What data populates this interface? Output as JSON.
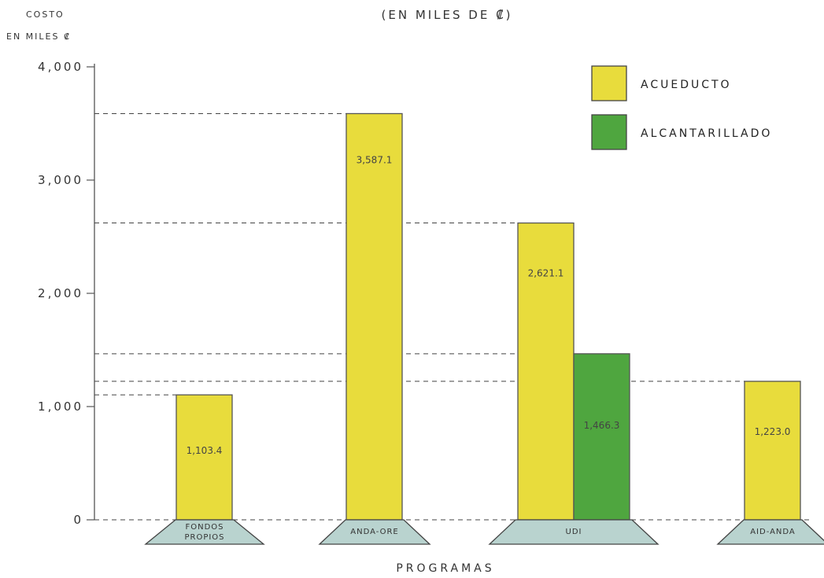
{
  "chart_data": {
    "type": "bar",
    "title": "(EN MILES DE ₡)",
    "ylabel_line1": "COSTO",
    "ylabel_line2": "EN MILES ₡",
    "xlabel": "PROGRAMAS",
    "ylim": [
      0,
      4000
    ],
    "yticks": [
      {
        "value": 0,
        "label": "0"
      },
      {
        "value": 1000,
        "label": "1,000"
      },
      {
        "value": 2000,
        "label": "2,000"
      },
      {
        "value": 3000,
        "label": "3,000"
      },
      {
        "value": 4000,
        "label": "4,000"
      }
    ],
    "categories": [
      "FONDOS PROPIOS",
      "ANDA-ORE",
      "UDI",
      "AID-ANDA"
    ],
    "series": [
      {
        "name": "ACUEDUCTO",
        "color": "#e8dc3c",
        "values": [
          1103.4,
          3587.1,
          2621.1,
          1223.0
        ],
        "labels": [
          "1,103.4",
          "3,587.1",
          "2,621.1",
          "1,223.0"
        ]
      },
      {
        "name": "ALCANTARILLADO",
        "color": "#4fa63f",
        "values": [
          null,
          null,
          1466.3,
          null
        ],
        "labels": [
          null,
          null,
          "1,466.3",
          null
        ]
      }
    ],
    "grid": "dashed reference lines at bar tops",
    "legend_position": "top-right",
    "base_color": "#b9d3cf"
  }
}
